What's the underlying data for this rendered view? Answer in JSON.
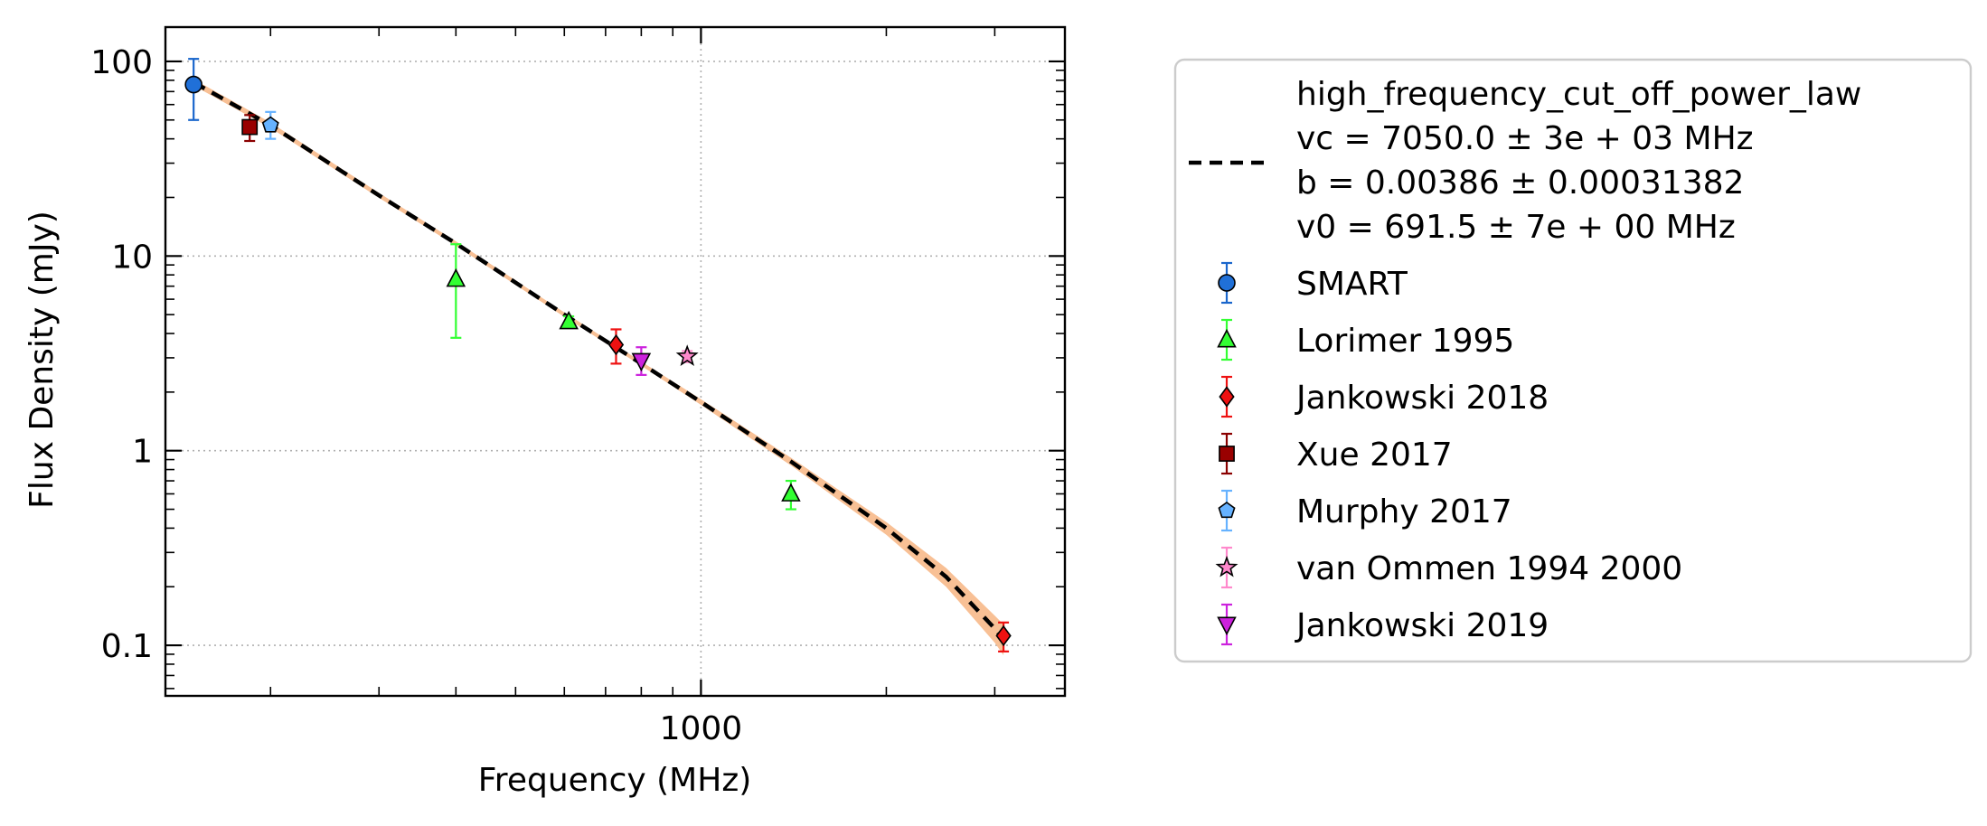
{
  "chart_data": {
    "type": "scatter",
    "title": "",
    "xlabel": "Frequency (MHz)",
    "ylabel": "Flux Density (mJy)",
    "xscale": "log",
    "yscale": "log",
    "xlim": [
      135,
      3900
    ],
    "ylim": [
      0.055,
      150
    ],
    "grid": true,
    "legend_position": "outside-right",
    "x_ticks": [
      {
        "value": 1000,
        "label": "1000"
      }
    ],
    "y_ticks": [
      {
        "value": 100,
        "label": "100"
      },
      {
        "value": 10,
        "label": "10"
      },
      {
        "value": 1,
        "label": "1"
      },
      {
        "value": 0.1,
        "label": "0.1"
      }
    ],
    "fit": {
      "name": "high_frequency_cut_off_power_law",
      "legend_lines": [
        "high_frequency_cut_off_power_law",
        "vc = 7050.0 ± 3e + 03 MHz",
        "b = 0.00386 ± 0.00031382",
        "v0 = 691.5 ± 7e + 00 MHz"
      ],
      "color": "#000000",
      "band_color": "#f7b98a",
      "x": [
        150,
        200,
        300,
        400,
        600,
        800,
        1000,
        1400,
        2000,
        2500,
        3000,
        3100
      ],
      "y": [
        78,
        47,
        20.5,
        11.6,
        5.0,
        2.8,
        1.78,
        0.88,
        0.4,
        0.225,
        0.122,
        0.107
      ],
      "band_lower": [
        75,
        45.5,
        19.9,
        11.3,
        4.87,
        2.73,
        1.72,
        0.84,
        0.37,
        0.2,
        0.103,
        0.089
      ],
      "band_upper": [
        81,
        48.5,
        21.1,
        11.9,
        5.13,
        2.87,
        1.84,
        0.92,
        0.43,
        0.25,
        0.142,
        0.128
      ]
    },
    "series": [
      {
        "name": "SMART",
        "marker": "circle",
        "color": "#2070d8",
        "edge_color": "#000000",
        "err_color": "#1a66cc",
        "points": [
          {
            "x": 150,
            "y": 76,
            "y_lo": 50,
            "y_hi": 103
          }
        ]
      },
      {
        "name": "Lorimer 1995",
        "marker": "triangle-up",
        "color": "#33ff33",
        "edge_color": "#000000",
        "err_color": "#33ff33",
        "points": [
          {
            "x": 400,
            "y": 7.6,
            "y_lo": 3.8,
            "y_hi": 11.5
          },
          {
            "x": 610,
            "y": 4.6,
            "y_lo": 4.3,
            "y_hi": 4.9
          },
          {
            "x": 1400,
            "y": 0.6,
            "y_lo": 0.5,
            "y_hi": 0.7
          }
        ]
      },
      {
        "name": "Jankowski 2018",
        "marker": "diamond",
        "color": "#ee1111",
        "edge_color": "#000000",
        "err_color": "#ee1111",
        "points": [
          {
            "x": 728,
            "y": 3.5,
            "y_lo": 2.8,
            "y_hi": 4.2
          },
          {
            "x": 3100,
            "y": 0.112,
            "y_lo": 0.093,
            "y_hi": 0.131
          }
        ]
      },
      {
        "name": "Xue 2017",
        "marker": "square",
        "color": "#990000",
        "edge_color": "#000000",
        "err_color": "#8b0000",
        "points": [
          {
            "x": 185,
            "y": 46,
            "y_lo": 39,
            "y_hi": 53
          }
        ]
      },
      {
        "name": "Murphy 2017",
        "marker": "pentagon",
        "color": "#66b2ff",
        "edge_color": "#000000",
        "err_color": "#66b2ff",
        "points": [
          {
            "x": 200,
            "y": 47,
            "y_lo": 40,
            "y_hi": 55
          }
        ]
      },
      {
        "name": "van Ommen 1994 2000",
        "marker": "star",
        "color": "#ff88cc",
        "edge_color": "#000000",
        "err_color": "#ff88cc",
        "points": [
          {
            "x": 950,
            "y": 3.05,
            "y_lo": 2.85,
            "y_hi": 3.25
          }
        ]
      },
      {
        "name": "Jankowski 2019",
        "marker": "triangle-down",
        "color": "#cc22dd",
        "edge_color": "#000000",
        "err_color": "#cc22dd",
        "points": [
          {
            "x": 800,
            "y": 2.9,
            "y_lo": 2.45,
            "y_hi": 3.4
          }
        ]
      }
    ]
  }
}
